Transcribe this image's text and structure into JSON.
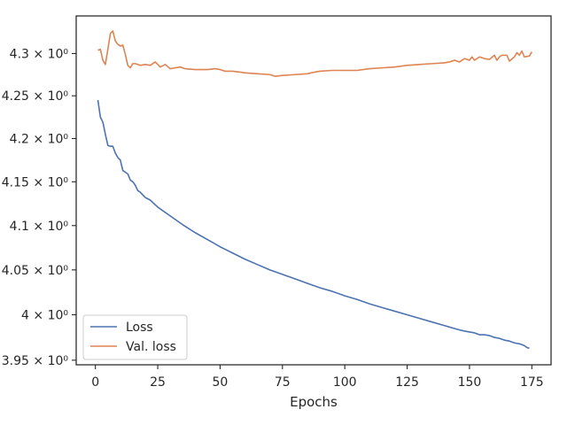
{
  "chart_data": {
    "type": "line",
    "title": "",
    "xlabel": "Epochs",
    "ylabel": "",
    "yscale": "log",
    "xlim": [
      -7.7,
      182.7
    ],
    "ylim": [
      3.945,
      4.345
    ],
    "xticks": [
      0,
      25,
      50,
      75,
      100,
      125,
      150,
      175
    ],
    "xtick_labels": [
      "0",
      "25",
      "50",
      "75",
      "100",
      "125",
      "150",
      "175"
    ],
    "yticks": [
      3.95,
      4.0,
      4.05,
      4.1,
      4.15,
      4.2,
      4.25,
      4.3
    ],
    "ytick_labels": [
      "3.95 × 10⁰",
      "4 × 10⁰",
      "4.05 × 10⁰",
      "4.1 × 10⁰",
      "4.15 × 10⁰",
      "4.2 × 10⁰",
      "4.25 × 10⁰",
      "4.3 × 10⁰"
    ],
    "grid": false,
    "legend_position": "lower-left",
    "series": [
      {
        "name": "Loss",
        "color": "#4c72b0",
        "points": [
          [
            1,
            4.245
          ],
          [
            2,
            4.225
          ],
          [
            3,
            4.219
          ],
          [
            4,
            4.205
          ],
          [
            5,
            4.192
          ],
          [
            6,
            4.191
          ],
          [
            7,
            4.191
          ],
          [
            8,
            4.183
          ],
          [
            9,
            4.178
          ],
          [
            10,
            4.175
          ],
          [
            11,
            4.163
          ],
          [
            12,
            4.161
          ],
          [
            13,
            4.159
          ],
          [
            14,
            4.152
          ],
          [
            15,
            4.15
          ],
          [
            16,
            4.146
          ],
          [
            17,
            4.14
          ],
          [
            18,
            4.138
          ],
          [
            19,
            4.135
          ],
          [
            20,
            4.132
          ],
          [
            22,
            4.129
          ],
          [
            25,
            4.121
          ],
          [
            30,
            4.111
          ],
          [
            35,
            4.101
          ],
          [
            40,
            4.092
          ],
          [
            45,
            4.084
          ],
          [
            50,
            4.076
          ],
          [
            55,
            4.069
          ],
          [
            60,
            4.062
          ],
          [
            65,
            4.056
          ],
          [
            70,
            4.05
          ],
          [
            75,
            4.045
          ],
          [
            80,
            4.04
          ],
          [
            85,
            4.035
          ],
          [
            90,
            4.03
          ],
          [
            95,
            4.026
          ],
          [
            100,
            4.021
          ],
          [
            105,
            4.017
          ],
          [
            110,
            4.012
          ],
          [
            115,
            4.008
          ],
          [
            120,
            4.004
          ],
          [
            125,
            4.0
          ],
          [
            130,
            3.996
          ],
          [
            135,
            3.992
          ],
          [
            140,
            3.988
          ],
          [
            145,
            3.984
          ],
          [
            148,
            3.982
          ],
          [
            150,
            3.981
          ],
          [
            152,
            3.98
          ],
          [
            154,
            3.978
          ],
          [
            156,
            3.978
          ],
          [
            158,
            3.977
          ],
          [
            160,
            3.975
          ],
          [
            162,
            3.974
          ],
          [
            164,
            3.972
          ],
          [
            166,
            3.971
          ],
          [
            168,
            3.969
          ],
          [
            170,
            3.968
          ],
          [
            171,
            3.967
          ],
          [
            172,
            3.966
          ],
          [
            173,
            3.964
          ],
          [
            174,
            3.963
          ]
        ]
      },
      {
        "name": "Val. loss",
        "color": "#dd8452",
        "points": [
          [
            1,
            4.304
          ],
          [
            2,
            4.305
          ],
          [
            3,
            4.292
          ],
          [
            4,
            4.287
          ],
          [
            5,
            4.305
          ],
          [
            6,
            4.324
          ],
          [
            7,
            4.327
          ],
          [
            8,
            4.315
          ],
          [
            9,
            4.311
          ],
          [
            10,
            4.309
          ],
          [
            11,
            4.31
          ],
          [
            12,
            4.299
          ],
          [
            13,
            4.286
          ],
          [
            14,
            4.283
          ],
          [
            15,
            4.288
          ],
          [
            16,
            4.288
          ],
          [
            18,
            4.286
          ],
          [
            20,
            4.287
          ],
          [
            22,
            4.286
          ],
          [
            24,
            4.29
          ],
          [
            26,
            4.284
          ],
          [
            28,
            4.287
          ],
          [
            30,
            4.282
          ],
          [
            32,
            4.283
          ],
          [
            34,
            4.284
          ],
          [
            36,
            4.282
          ],
          [
            40,
            4.281
          ],
          [
            45,
            4.281
          ],
          [
            48,
            4.282
          ],
          [
            50,
            4.281
          ],
          [
            52,
            4.279
          ],
          [
            55,
            4.279
          ],
          [
            58,
            4.278
          ],
          [
            60,
            4.277
          ],
          [
            65,
            4.276
          ],
          [
            70,
            4.275
          ],
          [
            72,
            4.273
          ],
          [
            75,
            4.274
          ],
          [
            80,
            4.275
          ],
          [
            85,
            4.276
          ],
          [
            88,
            4.278
          ],
          [
            90,
            4.279
          ],
          [
            95,
            4.28
          ],
          [
            100,
            4.28
          ],
          [
            105,
            4.28
          ],
          [
            110,
            4.282
          ],
          [
            115,
            4.283
          ],
          [
            120,
            4.284
          ],
          [
            125,
            4.286
          ],
          [
            130,
            4.287
          ],
          [
            135,
            4.288
          ],
          [
            140,
            4.289
          ],
          [
            142,
            4.29
          ],
          [
            144,
            4.292
          ],
          [
            146,
            4.29
          ],
          [
            148,
            4.294
          ],
          [
            150,
            4.292
          ],
          [
            151,
            4.296
          ],
          [
            152,
            4.292
          ],
          [
            154,
            4.296
          ],
          [
            156,
            4.294
          ],
          [
            158,
            4.293
          ],
          [
            160,
            4.298
          ],
          [
            161,
            4.292
          ],
          [
            162,
            4.296
          ],
          [
            163,
            4.298
          ],
          [
            165,
            4.298
          ],
          [
            166,
            4.291
          ],
          [
            168,
            4.296
          ],
          [
            169,
            4.301
          ],
          [
            170,
            4.298
          ],
          [
            171,
            4.303
          ],
          [
            172,
            4.296
          ],
          [
            174,
            4.297
          ],
          [
            175,
            4.302
          ]
        ]
      }
    ]
  }
}
